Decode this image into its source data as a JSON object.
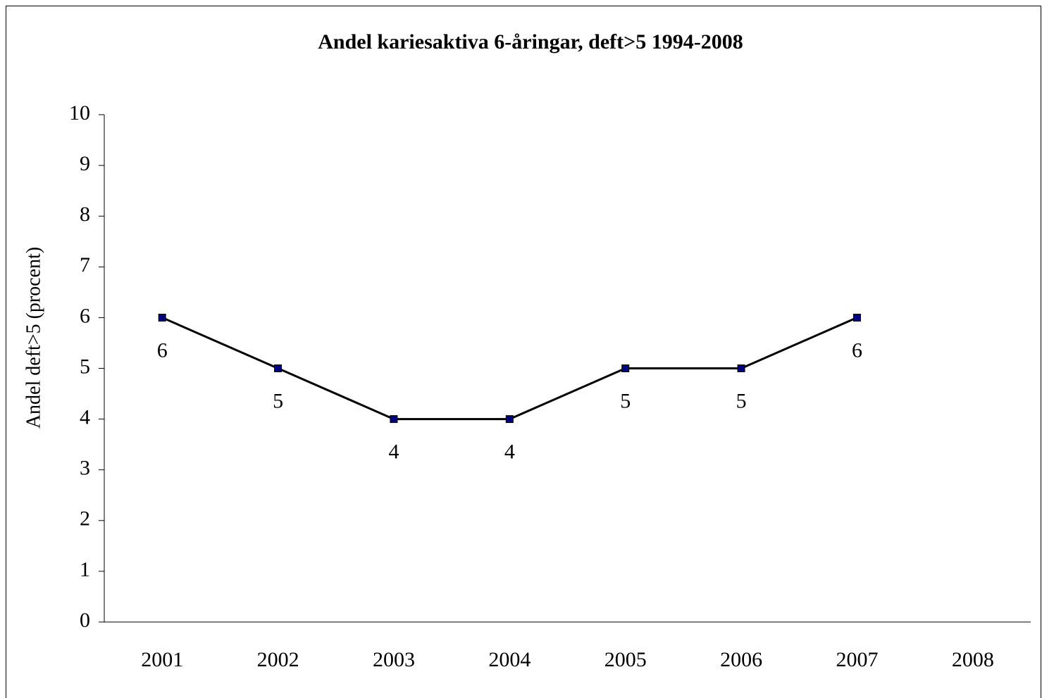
{
  "chart_data": {
    "type": "line",
    "title": "Andel kariesaktiva 6-åringar, deft>5 1994-2008",
    "y_label": "Andel deft>5 (procent)",
    "categories": [
      "2001",
      "2002",
      "2003",
      "2004",
      "2005",
      "2006",
      "2007",
      "2008"
    ],
    "values": [
      6,
      5,
      4,
      4,
      5,
      5,
      6,
      null
    ],
    "color": "#000000",
    "marker_color": "#000080",
    "ylim": [
      0,
      10
    ],
    "yticks": [
      0,
      1,
      2,
      3,
      4,
      5,
      6,
      7,
      8,
      9,
      10
    ],
    "grid": false
  }
}
